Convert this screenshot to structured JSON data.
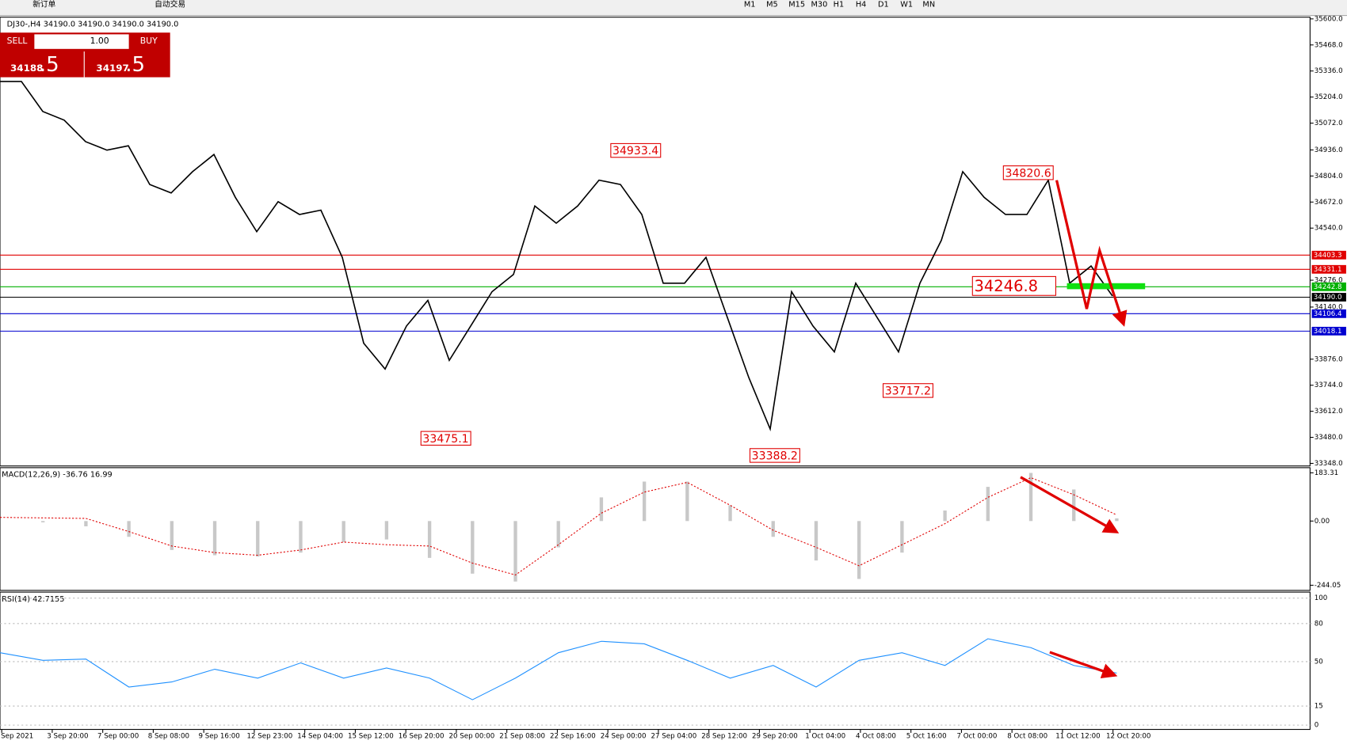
{
  "toolbar": {
    "new_order": "新订单",
    "auto_trade": "自动交易",
    "timeframes": [
      "M1",
      "M5",
      "M15",
      "M30",
      "H1",
      "H4",
      "D1",
      "W1",
      "MN"
    ]
  },
  "trade_panel": {
    "sell": "SELL",
    "buy": "BUY",
    "lots": "1.00",
    "bid_main": "34188",
    "bid_frac": ".5",
    "ask_main": "34197",
    "ask_frac": ".5"
  },
  "main_chart": {
    "symbol_info": "DJ30-,H4  34190.0 34190.0 34190.0 34190.0",
    "ylim": [
      33348,
      35600
    ],
    "yticks": [
      {
        "value": 35600,
        "label": "35600.0"
      },
      {
        "value": 35468,
        "label": "35468.0"
      },
      {
        "value": 35336,
        "label": "35336.0"
      },
      {
        "value": 35204,
        "label": "35204.0"
      },
      {
        "value": 35072,
        "label": "35072.0"
      },
      {
        "value": 34936,
        "label": "34936.0"
      },
      {
        "value": 34804,
        "label": "34804.0"
      },
      {
        "value": 34672,
        "label": "34672.0"
      },
      {
        "value": 34540,
        "label": "34540.0"
      },
      {
        "value": 34276,
        "label": "34276.0"
      },
      {
        "value": 34140,
        "label": "34140.0"
      },
      {
        "value": 33876,
        "label": "33876.0"
      },
      {
        "value": 33744,
        "label": "33744.0"
      },
      {
        "value": 33612,
        "label": "33612.0"
      },
      {
        "value": 33480,
        "label": "33480.0"
      },
      {
        "value": 33348,
        "label": "33348.0"
      }
    ],
    "closes": [
      35283,
      35283,
      35131,
      35087,
      34978,
      34935,
      34957,
      34761,
      34718,
      34826,
      34913,
      34696,
      34522,
      34674,
      34609,
      34631,
      34392,
      33957,
      33826,
      34044,
      34174,
      33870,
      34044,
      34218,
      34305,
      34652,
      34565,
      34652,
      34783,
      34761,
      34609,
      34261,
      34261,
      34392,
      34087,
      33783,
      33522,
      34218,
      34044,
      33913,
      34261,
      34087,
      33913,
      34261,
      34478,
      34826,
      34696,
      34609,
      34609,
      34783,
      34261,
      34348,
      34196
    ],
    "levels": [
      {
        "value": 34403.3,
        "color": "#e00000"
      },
      {
        "value": 34331.1,
        "color": "#e00000"
      },
      {
        "value": 34242.8,
        "color": "#00b000"
      },
      {
        "value": 34190,
        "label": "34190.0",
        "color": "#000000"
      },
      {
        "value": 34106.4,
        "color": "#0000d0"
      },
      {
        "value": 34018.1,
        "color": "#0000d0"
      }
    ],
    "annotations": [
      {
        "value": 34933.4
      },
      {
        "value": 34820.6
      },
      {
        "value": 33475.1
      },
      {
        "value": 33388.2
      },
      {
        "value": 33717.2
      },
      {
        "value": 34246.8
      }
    ]
  },
  "macd": {
    "label": "MACD(12,26,9) -36.76 16.99",
    "ylim": [
      -244.05,
      183.31
    ],
    "yticks": [
      183.31,
      {
        "value": 0,
        "label": "0.00"
      },
      -244.05
    ],
    "histogram": [
      0,
      -5,
      -20,
      -60,
      -110,
      -130,
      -135,
      -120,
      -80,
      -70,
      -140,
      -200,
      -230,
      -100,
      90,
      150,
      150,
      60,
      -60,
      -150,
      -220,
      -120,
      40,
      130,
      183,
      120,
      10
    ],
    "signal": [
      14,
      12,
      10,
      -40,
      -95,
      -120,
      -130,
      -110,
      -80,
      -90,
      -95,
      -160,
      -205,
      -90,
      30,
      110,
      147,
      60,
      -35,
      -100,
      -170,
      -90,
      -10,
      90,
      165,
      100,
      23
    ]
  },
  "rsi": {
    "label": "RSI(14) 42.7155",
    "ylim": [
      0,
      100
    ],
    "yticks": [
      100,
      80,
      50,
      15,
      0
    ],
    "values": [
      57,
      51,
      52,
      30,
      34,
      44,
      37,
      49,
      37,
      45,
      37,
      20,
      37,
      57,
      66,
      64,
      51,
      37,
      47,
      30,
      51,
      57,
      47,
      68,
      61,
      47,
      41
    ]
  },
  "time_labels": [
    "Sep 2021",
    "3 Sep 20:00",
    "7 Sep 00:00",
    "8 Sep 08:00",
    "9 Sep 16:00",
    "12 Sep 23:00",
    "14 Sep 04:00",
    "15 Sep 12:00",
    "16 Sep 20:00",
    "20 Sep 00:00",
    "21 Sep 08:00",
    "22 Sep 16:00",
    "24 Sep 00:00",
    "27 Sep 04:00",
    "28 Sep 12:00",
    "29 Sep 20:00",
    "1 Oct 04:00",
    "4 Oct 08:00",
    "5 Oct 16:00",
    "7 Oct 00:00",
    "8 Oct 08:00",
    "11 Oct 12:00",
    "12 Oct 20:00"
  ]
}
